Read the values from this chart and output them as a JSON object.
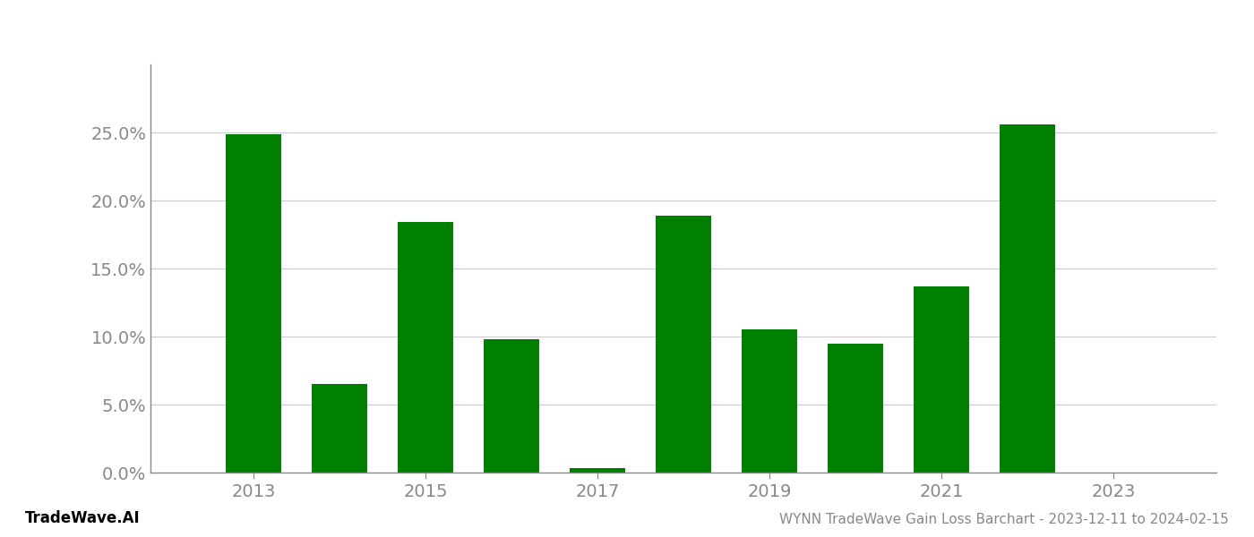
{
  "years": [
    2013,
    2014,
    2015,
    2016,
    2017,
    2018,
    2019,
    2020,
    2021,
    2022,
    2023
  ],
  "values": [
    0.249,
    0.065,
    0.184,
    0.098,
    0.003,
    0.189,
    0.105,
    0.095,
    0.137,
    0.256,
    0.0
  ],
  "bar_color": "#008000",
  "background_color": "#ffffff",
  "grid_color": "#cccccc",
  "axis_color": "#888888",
  "tick_label_color": "#888888",
  "ylim": [
    0,
    0.3
  ],
  "yticks": [
    0.0,
    0.05,
    0.1,
    0.15,
    0.2,
    0.25
  ],
  "xtick_years": [
    2013,
    2015,
    2017,
    2019,
    2021,
    2023
  ],
  "footer_left": "TradeWave.AI",
  "footer_right": "WYNN TradeWave Gain Loss Barchart - 2023-12-11 to 2024-02-15",
  "bar_width": 0.65,
  "figsize": [
    14.0,
    6.0
  ],
  "dpi": 100,
  "xlim": [
    2011.8,
    2024.2
  ]
}
